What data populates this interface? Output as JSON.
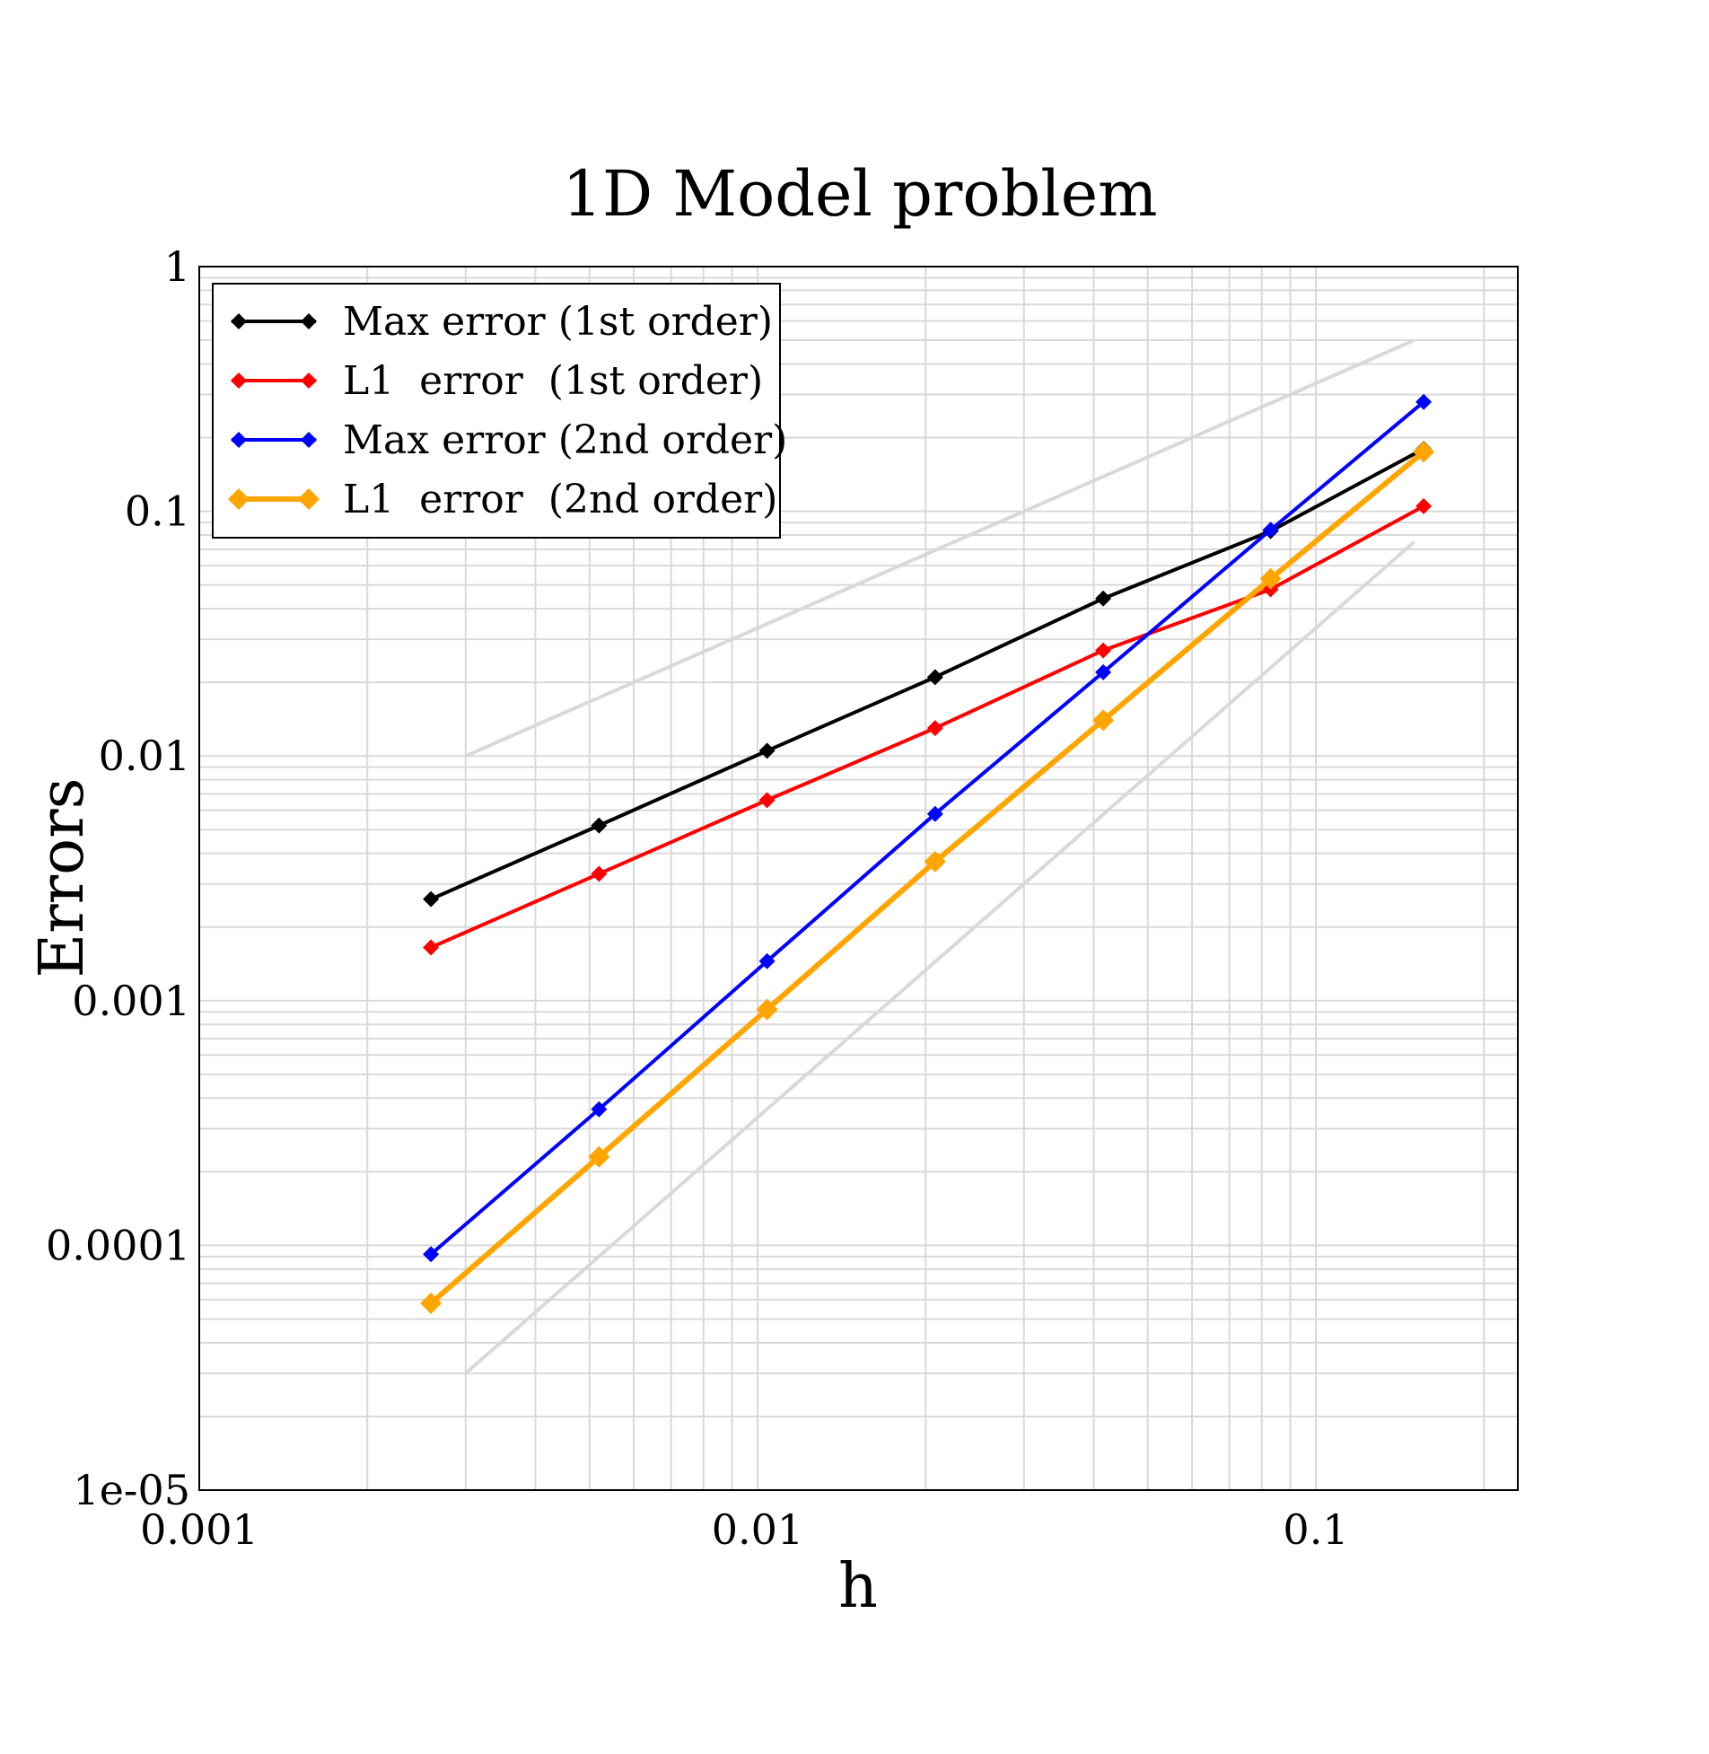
{
  "chart_data": {
    "type": "line",
    "title": "1D Model problem",
    "xlabel": "h",
    "ylabel": "Errors",
    "xscale": "log",
    "yscale": "log",
    "xlim": [
      0.001,
      0.23
    ],
    "ylim": [
      1e-05,
      1
    ],
    "grid": true,
    "legend_position": "top-left",
    "x_ticks": [
      {
        "value": 0.001,
        "label": "0.001"
      },
      {
        "value": 0.01,
        "label": "0.01"
      },
      {
        "value": 0.1,
        "label": "0.1"
      }
    ],
    "y_ticks": [
      {
        "value": 1e-05,
        "label": "1e-05"
      },
      {
        "value": 0.0001,
        "label": "0.0001"
      },
      {
        "value": 0.001,
        "label": "0.001"
      },
      {
        "value": 0.01,
        "label": "0.01"
      },
      {
        "value": 0.1,
        "label": "0.1"
      },
      {
        "value": 1,
        "label": "1"
      }
    ],
    "x": [
      0.0026,
      0.0052,
      0.0104,
      0.0208,
      0.0416,
      0.083,
      0.156
    ],
    "series": [
      {
        "name": "Max error (1st order)",
        "color": "#000000",
        "marker": "diamond",
        "values": [
          0.0026,
          0.0052,
          0.0105,
          0.021,
          0.044,
          0.083,
          0.18
        ]
      },
      {
        "name": "L1  error  (1st order)",
        "color": "#ff0000",
        "marker": "diamond",
        "values": [
          0.00165,
          0.0033,
          0.0066,
          0.013,
          0.027,
          0.048,
          0.105
        ]
      },
      {
        "name": "Max error (2nd order)",
        "color": "#0000ff",
        "marker": "diamond",
        "values": [
          9.2e-05,
          0.00036,
          0.00145,
          0.0058,
          0.022,
          0.084,
          0.28
        ]
      },
      {
        "name": "L1  error  (2nd order)",
        "color": "#ffa500",
        "marker": "diamond",
        "values": [
          5.8e-05,
          0.00023,
          0.00092,
          0.0037,
          0.014,
          0.053,
          0.175
        ]
      }
    ],
    "reference_lines": [
      {
        "color": "#d9d9d9",
        "x": [
          0.003,
          0.15
        ],
        "y": [
          0.01,
          0.5
        ]
      },
      {
        "color": "#d9d9d9",
        "x": [
          0.003,
          0.15
        ],
        "y": [
          3e-05,
          0.075
        ]
      }
    ]
  }
}
